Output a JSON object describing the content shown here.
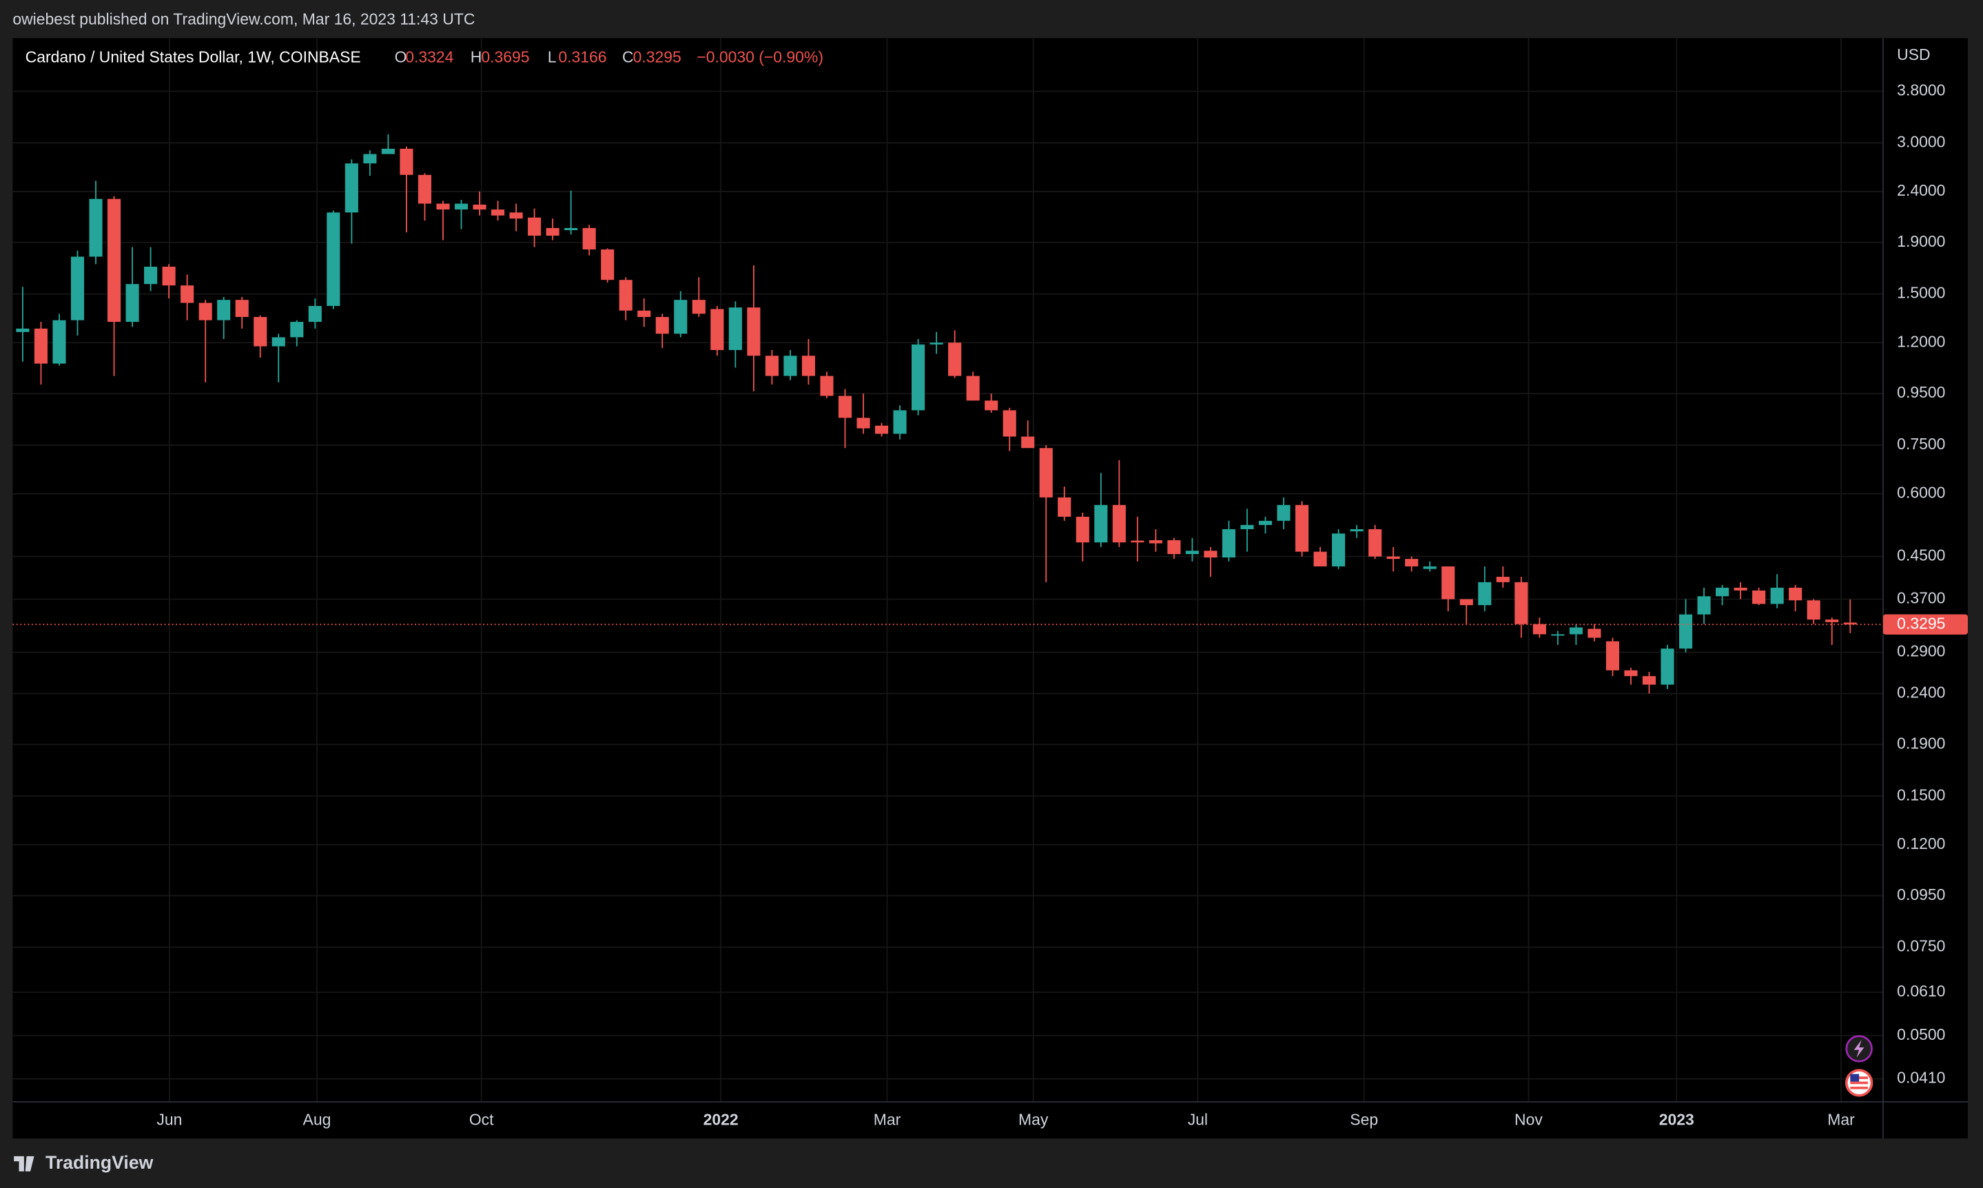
{
  "publisher_line": "owiebest published on TradingView.com, Mar 16, 2023 11:43 UTC",
  "footer": "TradingView",
  "chart_data": {
    "type": "candlestick",
    "title": "Cardano / United States Dollar, 1W, COINBASE",
    "ohlc_labels": [
      "O",
      "H",
      "L",
      "C"
    ],
    "change_label": "−0.0030 (−0.90%)",
    "y_axis_label": "USD",
    "up_color": "#26a69a",
    "down_color": "#ef5350",
    "log_scale": true,
    "grid": true,
    "xlim": [
      -0.55,
      101.8
    ],
    "xticks": [
      {
        "value": 8.03,
        "label": "Jun"
      },
      {
        "value": 16.1,
        "label": "Aug"
      },
      {
        "value": 25.1,
        "label": "Oct"
      },
      {
        "value": 38.2,
        "label": "2022"
      },
      {
        "value": 47.3,
        "label": "Mar"
      },
      {
        "value": 55.3,
        "label": "May"
      },
      {
        "value": 64.3,
        "label": "Jul"
      },
      {
        "value": 73.4,
        "label": "Sep"
      },
      {
        "value": 82.4,
        "label": "Nov"
      },
      {
        "value": 90.5,
        "label": "2023"
      },
      {
        "value": 99.5,
        "label": "Mar"
      }
    ],
    "ylim": [
      0.0369,
      4.85
    ],
    "yticks": [
      {
        "value": 3.8,
        "label": "3.8000"
      },
      {
        "value": 3.0,
        "label": "3.0000"
      },
      {
        "value": 2.4,
        "label": "2.4000"
      },
      {
        "value": 1.9,
        "label": "1.9000"
      },
      {
        "value": 1.5,
        "label": "1.5000"
      },
      {
        "value": 1.2,
        "label": "1.2000"
      },
      {
        "value": 0.95,
        "label": "0.9500"
      },
      {
        "value": 0.75,
        "label": "0.7500"
      },
      {
        "value": 0.6,
        "label": "0.6000"
      },
      {
        "value": 0.45,
        "label": "0.4500"
      },
      {
        "value": 0.37,
        "label": "0.3700"
      },
      {
        "value": 0.29,
        "label": "0.2900"
      },
      {
        "value": 0.24,
        "label": "0.2400"
      },
      {
        "value": 0.19,
        "label": "0.1900"
      },
      {
        "value": 0.15,
        "label": "0.1500"
      },
      {
        "value": 0.12,
        "label": "0.1200"
      },
      {
        "value": 0.095,
        "label": "0.0950"
      },
      {
        "value": 0.075,
        "label": "0.0750"
      },
      {
        "value": 0.061,
        "label": "0.0610"
      },
      {
        "value": 0.05,
        "label": "0.0500"
      },
      {
        "value": 0.041,
        "label": "0.0410"
      }
    ],
    "open": [
      1.26,
      1.28,
      1.09,
      1.33,
      1.78,
      2.32,
      1.32,
      1.57,
      1.7,
      1.56,
      1.44,
      1.33,
      1.46,
      1.35,
      1.18,
      1.23,
      1.32,
      1.42,
      2.18,
      2.73,
      2.85,
      2.92,
      2.59,
      2.27,
      2.21,
      2.26,
      2.21,
      2.18,
      2.13,
      2.03,
      2.01,
      2.03,
      1.84,
      1.6,
      1.39,
      1.35,
      1.25,
      1.46,
      1.4,
      1.16,
      1.41,
      1.13,
      1.03,
      1.13,
      1.03,
      0.94,
      0.85,
      0.82,
      0.79,
      0.88,
      1.19,
      1.2,
      1.03,
      0.92,
      0.88,
      0.78,
      0.74,
      0.59,
      0.54,
      0.48,
      0.57,
      0.484,
      0.485,
      0.485,
      0.455,
      0.462,
      0.448,
      0.51,
      0.52,
      0.53,
      0.57,
      0.46,
      0.43,
      0.505,
      0.51,
      0.45,
      0.445,
      0.425,
      0.43,
      0.37,
      0.36,
      0.41,
      0.4,
      0.33,
      0.313,
      0.315,
      0.323,
      0.305,
      0.267,
      0.26,
      0.25,
      0.295,
      0.345,
      0.375,
      0.39,
      0.385,
      0.362,
      0.39,
      0.368,
      0.337,
      0.3324
    ],
    "high": [
      1.55,
      1.32,
      1.37,
      1.83,
      2.52,
      2.35,
      1.86,
      1.86,
      1.72,
      1.64,
      1.46,
      1.48,
      1.48,
      1.36,
      1.25,
      1.33,
      1.47,
      2.2,
      2.78,
      2.9,
      3.12,
      2.95,
      2.61,
      2.3,
      2.31,
      2.4,
      2.3,
      2.27,
      2.22,
      2.12,
      2.41,
      2.06,
      1.85,
      1.62,
      1.47,
      1.37,
      1.52,
      1.62,
      1.42,
      1.45,
      1.71,
      1.16,
      1.16,
      1.22,
      1.05,
      0.97,
      0.95,
      0.83,
      0.9,
      1.22,
      1.26,
      1.27,
      1.05,
      0.95,
      0.89,
      0.84,
      0.75,
      0.62,
      0.55,
      0.66,
      0.7,
      0.54,
      0.51,
      0.49,
      0.49,
      0.47,
      0.53,
      0.56,
      0.54,
      0.59,
      0.58,
      0.47,
      0.51,
      0.52,
      0.52,
      0.47,
      0.45,
      0.44,
      0.43,
      0.37,
      0.43,
      0.43,
      0.41,
      0.34,
      0.32,
      0.33,
      0.33,
      0.31,
      0.27,
      0.265,
      0.3,
      0.37,
      0.39,
      0.395,
      0.4,
      0.39,
      0.415,
      0.395,
      0.37,
      0.34,
      0.3695
    ],
    "low": [
      1.1,
      0.99,
      1.08,
      1.24,
      1.72,
      1.03,
      1.29,
      1.52,
      1.47,
      1.33,
      1.0,
      1.22,
      1.28,
      1.12,
      1.0,
      1.18,
      1.28,
      1.4,
      1.89,
      2.58,
      2.85,
      1.99,
      2.1,
      1.92,
      2.02,
      2.15,
      2.1,
      2.0,
      1.86,
      1.92,
      1.97,
      1.79,
      1.58,
      1.33,
      1.29,
      1.17,
      1.23,
      1.35,
      1.13,
      1.07,
      0.96,
      0.99,
      1.01,
      0.99,
      0.93,
      0.74,
      0.79,
      0.78,
      0.77,
      0.86,
      1.14,
      1.02,
      0.92,
      0.87,
      0.73,
      0.74,
      0.4,
      0.53,
      0.44,
      0.47,
      0.47,
      0.44,
      0.46,
      0.445,
      0.44,
      0.41,
      0.44,
      0.46,
      0.5,
      0.51,
      0.45,
      0.43,
      0.425,
      0.49,
      0.445,
      0.42,
      0.42,
      0.42,
      0.35,
      0.33,
      0.35,
      0.39,
      0.31,
      0.31,
      0.3,
      0.3,
      0.305,
      0.26,
      0.25,
      0.24,
      0.245,
      0.29,
      0.33,
      0.36,
      0.37,
      0.36,
      0.355,
      0.35,
      0.33,
      0.3,
      0.3166
    ],
    "close": [
      1.28,
      1.09,
      1.33,
      1.78,
      2.32,
      1.32,
      1.57,
      1.7,
      1.56,
      1.44,
      1.33,
      1.46,
      1.35,
      1.18,
      1.23,
      1.32,
      1.42,
      2.18,
      2.73,
      2.85,
      2.92,
      2.59,
      2.27,
      2.21,
      2.27,
      2.21,
      2.15,
      2.12,
      1.96,
      1.96,
      2.03,
      1.84,
      1.6,
      1.39,
      1.35,
      1.25,
      1.46,
      1.37,
      1.16,
      1.41,
      1.13,
      1.03,
      1.13,
      1.03,
      0.94,
      0.85,
      0.81,
      0.79,
      0.88,
      1.19,
      1.2,
      1.03,
      0.92,
      0.88,
      0.78,
      0.74,
      0.59,
      0.54,
      0.48,
      0.57,
      0.48,
      0.48,
      0.478,
      0.455,
      0.462,
      0.448,
      0.51,
      0.52,
      0.53,
      0.57,
      0.46,
      0.43,
      0.5,
      0.51,
      0.45,
      0.445,
      0.43,
      0.43,
      0.37,
      0.36,
      0.4,
      0.4,
      0.33,
      0.315,
      0.315,
      0.325,
      0.31,
      0.267,
      0.26,
      0.25,
      0.295,
      0.345,
      0.375,
      0.39,
      0.385,
      0.362,
      0.39,
      0.368,
      0.337,
      0.333,
      0.3295
    ]
  }
}
